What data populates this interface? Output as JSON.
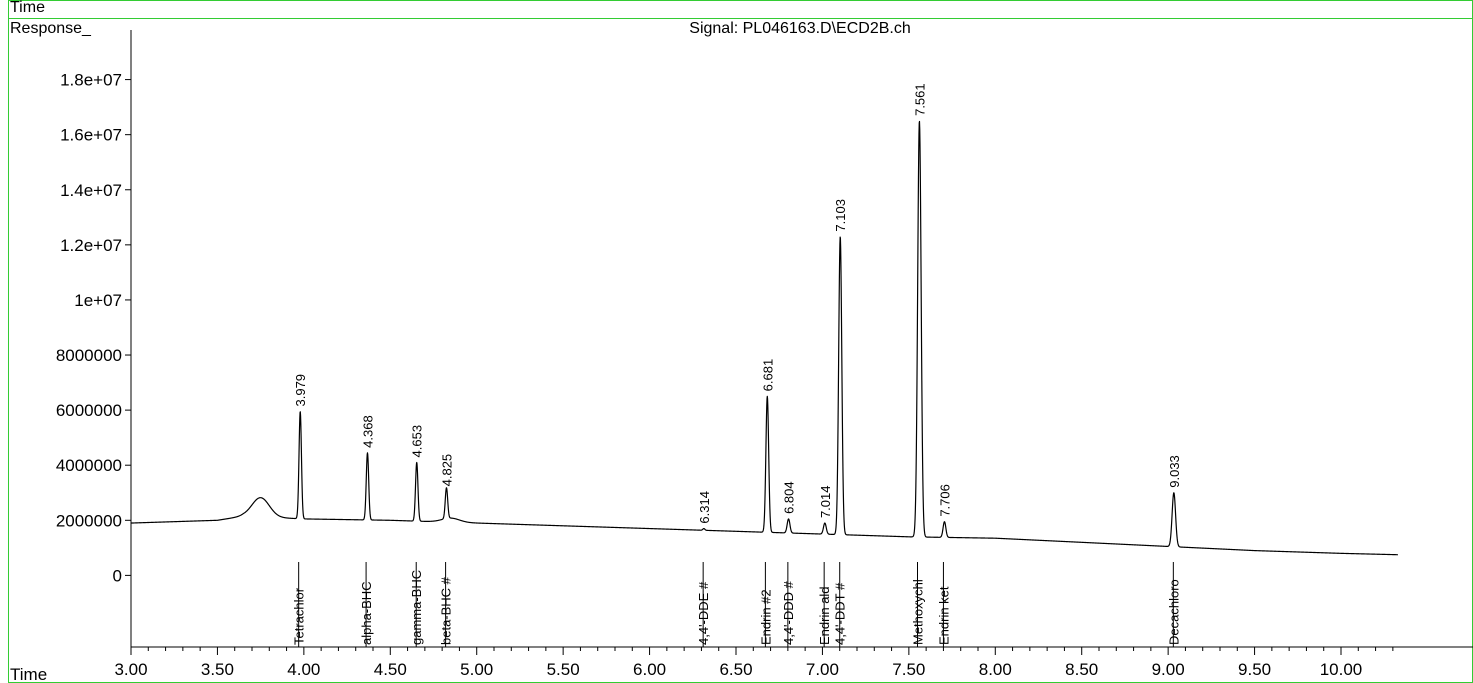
{
  "header": {
    "top_label": "Time",
    "response_label": "Response_",
    "signal_title": "Signal: PL046163.D\\ECD2B.ch"
  },
  "chart_data": {
    "type": "line",
    "title": "Signal: PL046163.D\\ECD2B.ch",
    "xlabel": "Time",
    "ylabel": "Response_",
    "xlim": [
      3.0,
      10.33
    ],
    "ylim": [
      -2600000,
      19800000
    ],
    "grid": false,
    "x_ticks": [
      "3.00",
      "3.50",
      "4.00",
      "4.50",
      "5.00",
      "5.50",
      "6.00",
      "6.50",
      "7.00",
      "7.50",
      "8.00",
      "8.50",
      "9.00",
      "9.50",
      "10.00"
    ],
    "y_ticks": [
      "0",
      "2000000",
      "4000000",
      "6000000",
      "8000000",
      "1e+07",
      "1.2e+07",
      "1.4e+07",
      "1.6e+07",
      "1.8e+07"
    ],
    "baseline": [
      {
        "x": 3.0,
        "y": 1900000
      },
      {
        "x": 3.5,
        "y": 2000000
      },
      {
        "x": 3.65,
        "y": 2150000
      },
      {
        "x": 4.0,
        "y": 2050000
      },
      {
        "x": 4.5,
        "y": 2000000
      },
      {
        "x": 5.0,
        "y": 1900000
      },
      {
        "x": 5.5,
        "y": 1800000
      },
      {
        "x": 6.0,
        "y": 1700000
      },
      {
        "x": 6.5,
        "y": 1600000
      },
      {
        "x": 7.0,
        "y": 1500000
      },
      {
        "x": 7.5,
        "y": 1400000
      },
      {
        "x": 8.0,
        "y": 1350000
      },
      {
        "x": 8.5,
        "y": 1200000
      },
      {
        "x": 9.0,
        "y": 1050000
      },
      {
        "x": 9.5,
        "y": 900000
      },
      {
        "x": 10.0,
        "y": 800000
      },
      {
        "x": 10.33,
        "y": 750000
      }
    ],
    "humps": [
      {
        "x": 3.75,
        "height": 700000,
        "width": 0.05
      },
      {
        "x": 4.85,
        "height": 150000,
        "width": 0.05
      }
    ],
    "peaks": [
      {
        "rt": "3.979",
        "x": 3.979,
        "y": 5950000,
        "width": 0.007
      },
      {
        "rt": "4.368",
        "x": 4.368,
        "y": 4450000,
        "width": 0.007
      },
      {
        "rt": "4.653",
        "x": 4.653,
        "y": 4100000,
        "width": 0.007
      },
      {
        "rt": "4.825",
        "x": 4.825,
        "y": 3050000,
        "width": 0.007
      },
      {
        "rt": "6.314",
        "x": 6.314,
        "y": 1700000,
        "width": 0.006
      },
      {
        "rt": "6.681",
        "x": 6.681,
        "y": 6500000,
        "width": 0.008
      },
      {
        "rt": "6.804",
        "x": 6.804,
        "y": 2050000,
        "width": 0.008
      },
      {
        "rt": "7.014",
        "x": 7.014,
        "y": 1900000,
        "width": 0.008
      },
      {
        "rt": "7.103",
        "x": 7.103,
        "y": 12300000,
        "width": 0.009
      },
      {
        "rt": "7.561",
        "x": 7.561,
        "y": 16500000,
        "width": 0.01
      },
      {
        "rt": "7.706",
        "x": 7.706,
        "y": 1950000,
        "width": 0.008
      },
      {
        "rt": "9.033",
        "x": 9.033,
        "y": 3000000,
        "width": 0.01
      }
    ],
    "compounds": [
      {
        "name": "Tetrachlor",
        "x": 3.97
      },
      {
        "name": "alpha-BHC",
        "x": 4.36
      },
      {
        "name": "gamma-BHC",
        "x": 4.65
      },
      {
        "name": "beta-BHC #",
        "x": 4.82
      },
      {
        "name": "4,4'-DDE #",
        "x": 6.31
      },
      {
        "name": "Endrin #2",
        "x": 6.67
      },
      {
        "name": "4,4'-DDD #",
        "x": 6.8
      },
      {
        "name": "Endrin ald",
        "x": 7.01
      },
      {
        "name": "4,4'-DDT #",
        "x": 7.1
      },
      {
        "name": "Methoxychl",
        "x": 7.55
      },
      {
        "name": "Endrin ket",
        "x": 7.7
      },
      {
        "name": "Decachloro",
        "x": 9.03
      }
    ]
  }
}
